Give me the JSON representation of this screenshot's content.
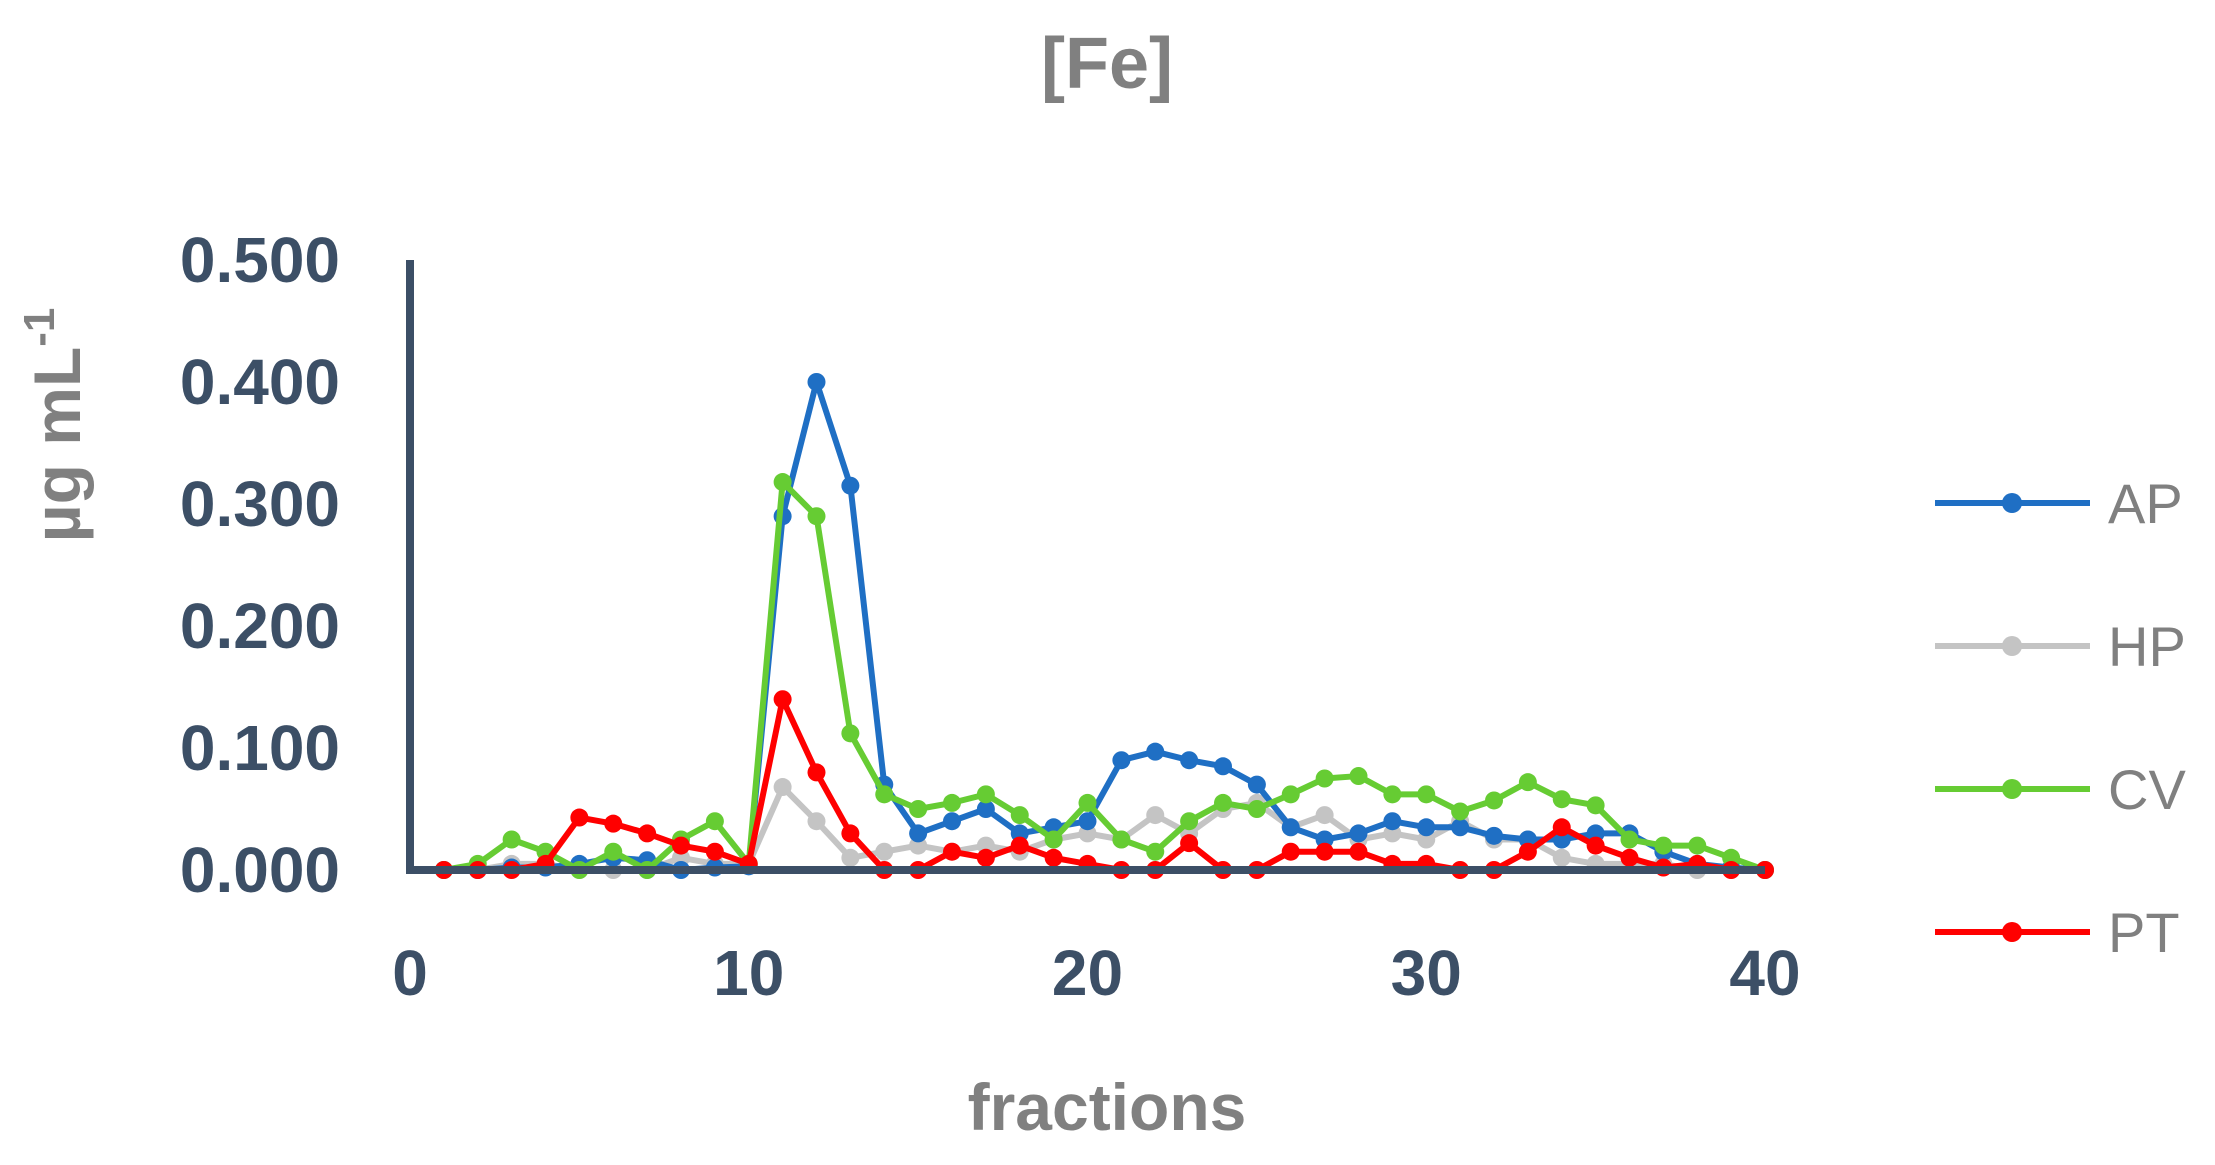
{
  "chart_data": {
    "type": "line",
    "title": "[Fe]",
    "xlabel": "fractions",
    "ylabel_main": "µg mL",
    "ylabel_sup": "-1",
    "xlim": [
      0,
      40
    ],
    "ylim": [
      0,
      0.5
    ],
    "xticks": [
      0,
      10,
      20,
      30,
      40
    ],
    "yticks": [
      0,
      0.1,
      0.2,
      0.3,
      0.4,
      0.5
    ],
    "ytick_labels": [
      "0.000",
      "0.100",
      "0.200",
      "0.300",
      "0.400",
      "0.500"
    ],
    "xtick_labels": [
      "0",
      "10",
      "20",
      "30",
      "40"
    ],
    "legend_position": "right",
    "x": [
      1,
      2,
      3,
      4,
      5,
      6,
      7,
      8,
      9,
      10,
      11,
      12,
      13,
      14,
      15,
      16,
      17,
      18,
      19,
      20,
      21,
      22,
      23,
      24,
      25,
      26,
      27,
      28,
      29,
      30,
      31,
      32,
      33,
      34,
      35,
      36,
      37,
      38,
      39,
      40
    ],
    "series": [
      {
        "name": "AP",
        "color": "#1f6fc4",
        "values": [
          0.0,
          0.0,
          0.002,
          0.002,
          0.005,
          0.01,
          0.008,
          0.0,
          0.002,
          0.003,
          0.29,
          0.4,
          0.315,
          0.07,
          0.03,
          0.04,
          0.05,
          0.03,
          0.035,
          0.04,
          0.09,
          0.097,
          0.09,
          0.085,
          0.07,
          0.035,
          0.025,
          0.03,
          0.04,
          0.035,
          0.035,
          0.028,
          0.025,
          0.025,
          0.03,
          0.03,
          0.015,
          0.005,
          0.002,
          0.0
        ]
      },
      {
        "name": "HP",
        "color": "#c4c4c4",
        "values": [
          0.0,
          0.0,
          0.005,
          0.005,
          0.0,
          0.0,
          0.0,
          0.01,
          0.005,
          0.005,
          0.068,
          0.04,
          0.01,
          0.015,
          0.02,
          0.015,
          0.02,
          0.015,
          0.025,
          0.03,
          0.025,
          0.045,
          0.03,
          0.05,
          0.055,
          0.035,
          0.045,
          0.025,
          0.03,
          0.025,
          0.04,
          0.025,
          0.025,
          0.01,
          0.005,
          0.005,
          0.005,
          0.0,
          0.0,
          0.0
        ]
      },
      {
        "name": "CV",
        "color": "#66cc33",
        "values": [
          0.0,
          0.005,
          0.025,
          0.015,
          0.0,
          0.015,
          0.0,
          0.025,
          0.04,
          0.005,
          0.318,
          0.29,
          0.112,
          0.062,
          0.05,
          0.055,
          0.062,
          0.045,
          0.025,
          0.055,
          0.025,
          0.015,
          0.04,
          0.055,
          0.05,
          0.062,
          0.075,
          0.077,
          0.062,
          0.062,
          0.048,
          0.057,
          0.072,
          0.058,
          0.053,
          0.025,
          0.02,
          0.02,
          0.01,
          0.0
        ]
      },
      {
        "name": "PT",
        "color": "#ff0000",
        "values": [
          0.0,
          0.0,
          0.0,
          0.005,
          0.043,
          0.038,
          0.03,
          0.02,
          0.015,
          0.005,
          0.14,
          0.08,
          0.03,
          0.0,
          0.0,
          0.015,
          0.01,
          0.02,
          0.01,
          0.005,
          0.0,
          0.0,
          0.022,
          0.0,
          0.0,
          0.015,
          0.015,
          0.015,
          0.005,
          0.005,
          0.0,
          0.0,
          0.015,
          0.035,
          0.02,
          0.01,
          0.002,
          0.005,
          0.0,
          0.0
        ]
      }
    ]
  }
}
